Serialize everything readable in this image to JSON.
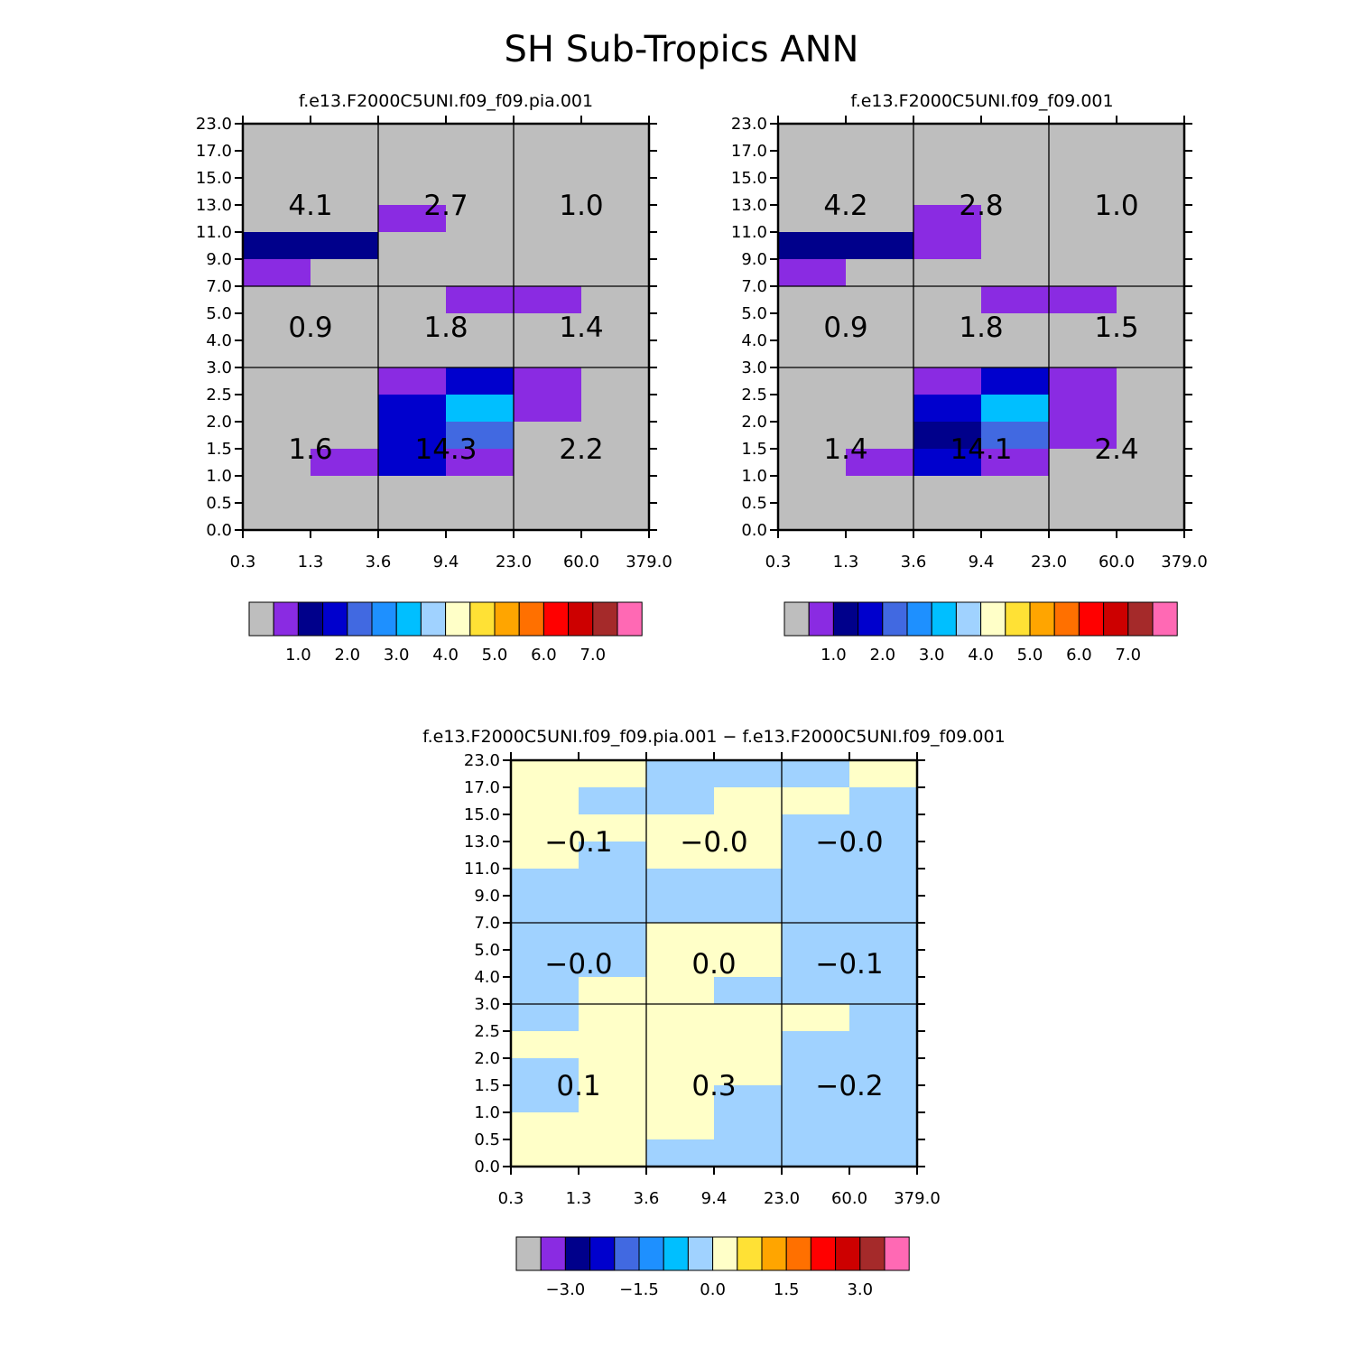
{
  "title": "SH Sub-Tropics ANN",
  "palette": [
    "#bebebe",
    "#8a2be2",
    "#00008b",
    "#0000cd",
    "#4169e1",
    "#1e90ff",
    "#00bfff",
    "#a0d2ff",
    "#ffffc8",
    "#ffe135",
    "#ffa500",
    "#ff7000",
    "#ff0000",
    "#cd0000",
    "#a52a2a",
    "#ff69b4"
  ],
  "x_ticks": [
    "0.3",
    "1.3",
    "3.6",
    "9.4",
    "23.0",
    "60.0",
    "379.0"
  ],
  "y_ticks": [
    "0.0",
    "0.5",
    "1.0",
    "1.5",
    "2.0",
    "2.5",
    "3.0",
    "4.0",
    "5.0",
    "7.0",
    "9.0",
    "11.0",
    "13.0",
    "15.0",
    "17.0",
    "23.0"
  ],
  "chart_data": [
    {
      "type": "heatmap",
      "title": "f.e13.F2000C5UNI.f09_f09.pia.001",
      "grid_rows_top_to_bottom": [
        [
          0,
          0,
          0,
          0,
          0,
          0
        ],
        [
          0,
          0,
          0,
          0,
          0,
          0
        ],
        [
          0,
          0,
          0,
          0,
          0,
          0
        ],
        [
          0,
          0,
          1,
          0,
          0,
          0
        ],
        [
          2,
          2,
          0,
          0,
          0,
          0
        ],
        [
          1,
          0,
          0,
          0,
          0,
          0
        ],
        [
          0,
          0,
          0,
          1,
          1,
          0
        ],
        [
          0,
          0,
          0,
          0,
          0,
          0
        ],
        [
          0,
          0,
          0,
          0,
          0,
          0
        ],
        [
          0,
          0,
          1,
          3,
          1,
          0
        ],
        [
          0,
          0,
          3,
          6,
          1,
          0
        ],
        [
          0,
          0,
          3,
          4,
          0,
          0
        ],
        [
          0,
          1,
          3,
          1,
          0,
          0
        ],
        [
          0,
          0,
          0,
          0,
          0,
          0
        ],
        [
          0,
          0,
          0,
          0,
          0,
          0
        ]
      ],
      "boxes": [
        "4.1",
        "2.7",
        "1.0",
        "0.9",
        "1.8",
        "1.4",
        "1.6",
        "14.3",
        "2.2"
      ],
      "colorbar_labels": [
        "1.0",
        "2.0",
        "3.0",
        "4.0",
        "5.0",
        "6.0",
        "7.0"
      ]
    },
    {
      "type": "heatmap",
      "title": "f.e13.F2000C5UNI.f09_f09.001",
      "grid_rows_top_to_bottom": [
        [
          0,
          0,
          0,
          0,
          0,
          0
        ],
        [
          0,
          0,
          0,
          0,
          0,
          0
        ],
        [
          0,
          0,
          0,
          0,
          0,
          0
        ],
        [
          0,
          0,
          1,
          0,
          0,
          0
        ],
        [
          2,
          2,
          1,
          0,
          0,
          0
        ],
        [
          1,
          0,
          0,
          0,
          0,
          0
        ],
        [
          0,
          0,
          0,
          1,
          1,
          0
        ],
        [
          0,
          0,
          0,
          0,
          0,
          0
        ],
        [
          0,
          0,
          0,
          0,
          0,
          0
        ],
        [
          0,
          0,
          1,
          3,
          1,
          0
        ],
        [
          0,
          0,
          3,
          6,
          1,
          0
        ],
        [
          0,
          0,
          2,
          4,
          1,
          0
        ],
        [
          0,
          1,
          3,
          1,
          0,
          0
        ],
        [
          0,
          0,
          0,
          0,
          0,
          0
        ],
        [
          0,
          0,
          0,
          0,
          0,
          0
        ]
      ],
      "boxes": [
        "4.2",
        "2.8",
        "1.0",
        "0.9",
        "1.8",
        "1.5",
        "1.4",
        "14.1",
        "2.4"
      ],
      "colorbar_labels": [
        "1.0",
        "2.0",
        "3.0",
        "4.0",
        "5.0",
        "6.0",
        "7.0"
      ]
    },
    {
      "type": "heatmap",
      "title": "f.e13.F2000C5UNI.f09_f09.pia.001 − f.e13.F2000C5UNI.f09_f09.001",
      "grid_rows_top_to_bottom": [
        [
          8,
          8,
          7,
          7,
          7,
          8
        ],
        [
          8,
          7,
          7,
          8,
          8,
          7
        ],
        [
          8,
          8,
          8,
          8,
          7,
          7
        ],
        [
          8,
          7,
          8,
          8,
          7,
          7
        ],
        [
          7,
          7,
          7,
          7,
          7,
          7
        ],
        [
          7,
          7,
          7,
          7,
          7,
          7
        ],
        [
          7,
          7,
          8,
          8,
          7,
          7
        ],
        [
          7,
          7,
          8,
          8,
          7,
          7
        ],
        [
          7,
          8,
          8,
          7,
          7,
          7
        ],
        [
          7,
          8,
          8,
          8,
          8,
          7
        ],
        [
          8,
          8,
          8,
          8,
          7,
          7
        ],
        [
          7,
          8,
          8,
          8,
          7,
          7
        ],
        [
          7,
          8,
          8,
          7,
          7,
          7
        ],
        [
          8,
          8,
          8,
          7,
          7,
          7
        ],
        [
          8,
          8,
          7,
          7,
          7,
          7
        ]
      ],
      "boxes": [
        "−0.1",
        "−0.0",
        "−0.0",
        "−0.0",
        "0.0",
        "−0.1",
        "0.1",
        "0.3",
        "−0.2"
      ],
      "colorbar_labels": [
        "−3.0",
        "−1.5",
        "0.0",
        "1.5",
        "3.0"
      ]
    }
  ]
}
